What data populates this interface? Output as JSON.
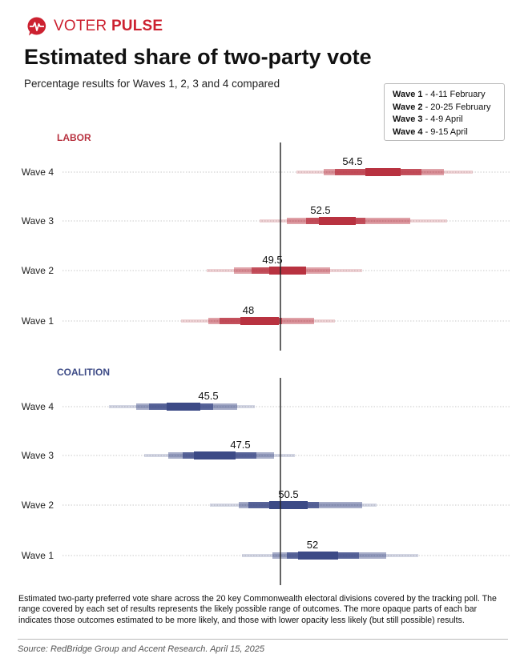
{
  "brand": {
    "name_part1": "VOTER ",
    "name_part2": "PULSE",
    "logo_icon": "heartbeat-speech-bubble-icon",
    "color": "#cc2130"
  },
  "title": "Estimated share of two-party vote",
  "subtitle": "Percentage results for Waves 1, 2, 3 and 4 compared",
  "legend": [
    {
      "wave": "Wave 1",
      "dates": " - 4-11 February"
    },
    {
      "wave": "Wave 2",
      "dates": " - 20-25 February"
    },
    {
      "wave": "Wave 3",
      "dates": " - 4-9 April"
    },
    {
      "wave": "Wave 4",
      "dates": " - 9-15 April"
    }
  ],
  "footnote": "Estimated two-party preferred vote share across the 20 key Commonwealth electoral divisions covered by the tracking poll. The range covered by each set of results represents the likely possible range of outcomes. The more opaque parts of each bar indicates those outcomes estimated to be more likely, and those with lower opacity less likely (but still possible) results.",
  "source": "Source: RedBridge Group and Accent Research. April 15, 2025",
  "chart_data": {
    "type": "range-bar",
    "reference_line": 50,
    "x_range": [
      36,
      60
    ],
    "colors": {
      "labor": "#b83240",
      "coalition": "#3c4a86"
    },
    "panels": [
      {
        "party": "LABOR",
        "key": "labor",
        "rows": [
          {
            "label": "Wave 4",
            "value": 54.5,
            "ranges": [
              [
                51,
                62
              ],
              [
                52.7,
                60.2
              ],
              [
                53.4,
                58.8
              ],
              [
                55.3,
                57.5
              ]
            ]
          },
          {
            "label": "Wave 3",
            "value": 52.5,
            "ranges": [
              [
                48.7,
                60.4
              ],
              [
                50.4,
                58.1
              ],
              [
                51.6,
                55.3
              ],
              [
                52.4,
                54.7
              ]
            ]
          },
          {
            "label": "Wave 2",
            "value": 49.5,
            "ranges": [
              [
                45.4,
                55.1
              ],
              [
                47.1,
                53.1
              ],
              [
                48.2,
                50.8
              ],
              [
                49.3,
                51.6
              ]
            ]
          },
          {
            "label": "Wave 1",
            "value": 48,
            "ranges": [
              [
                43.8,
                53.4
              ],
              [
                45.5,
                52.1
              ],
              [
                46.2,
                50.1
              ],
              [
                47.5,
                49.9
              ]
            ]
          }
        ]
      },
      {
        "party": "COALITION",
        "key": "coalition",
        "rows": [
          {
            "label": "Wave 4",
            "value": 45.5,
            "ranges": [
              [
                39.3,
                48.4
              ],
              [
                41,
                47.3
              ],
              [
                41.8,
                45.8
              ],
              [
                42.9,
                45
              ]
            ]
          },
          {
            "label": "Wave 3",
            "value": 47.5,
            "ranges": [
              [
                41.5,
                50.9
              ],
              [
                43,
                49.6
              ],
              [
                43.9,
                48.5
              ],
              [
                44.6,
                47.2
              ]
            ]
          },
          {
            "label": "Wave 2",
            "value": 50.5,
            "ranges": [
              [
                45.6,
                56
              ],
              [
                47.4,
                55.1
              ],
              [
                48,
                52.4
              ],
              [
                49.3,
                51.7
              ]
            ]
          },
          {
            "label": "Wave 1",
            "value": 52,
            "ranges": [
              [
                47.6,
                58.6
              ],
              [
                49.5,
                56.6
              ],
              [
                50.4,
                54.9
              ],
              [
                51.1,
                53.6
              ]
            ]
          }
        ]
      }
    ]
  }
}
